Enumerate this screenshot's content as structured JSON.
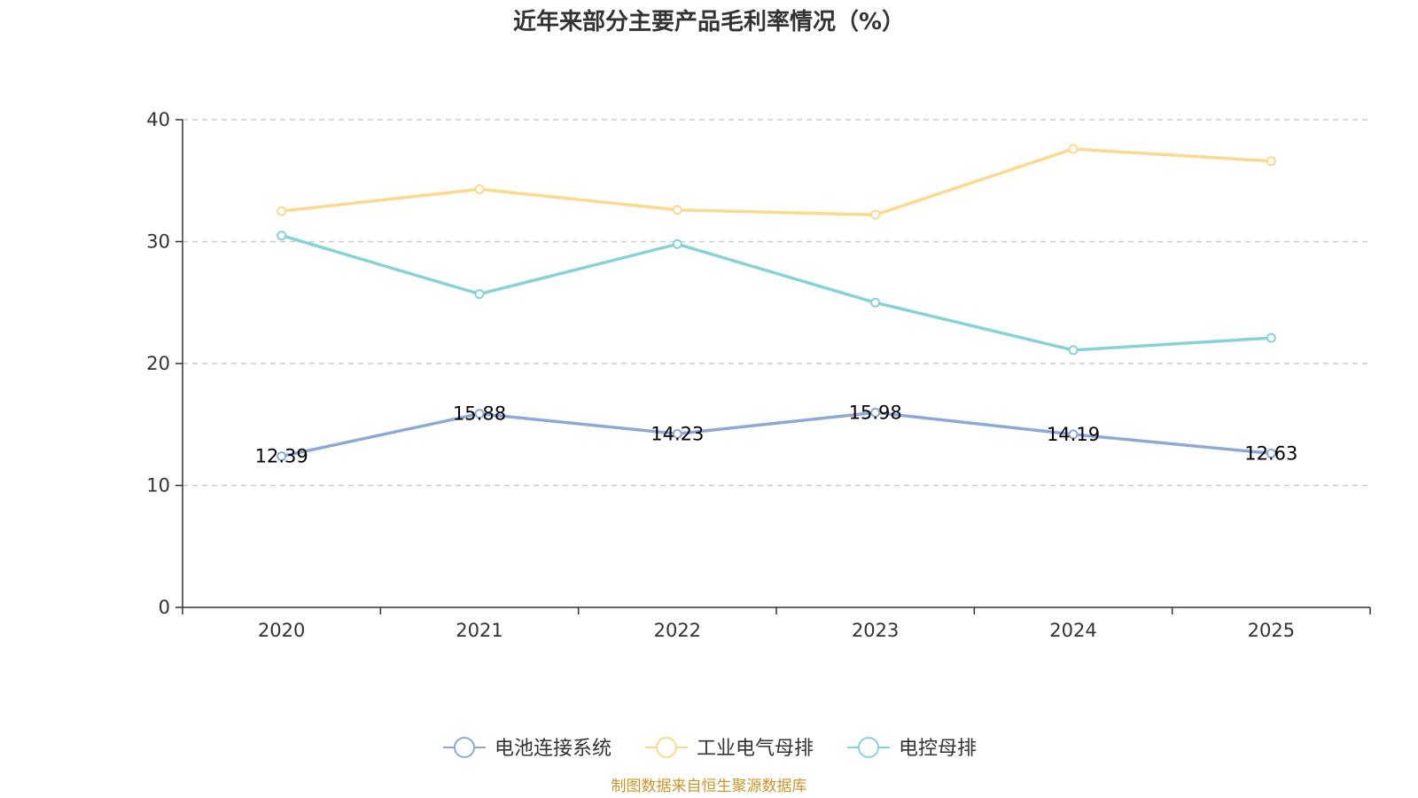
{
  "chart_data": {
    "type": "line",
    "title": "近年来部分主要产品毛利率情况（%）",
    "categories": [
      "2020",
      "2021",
      "2022",
      "2023",
      "2024",
      "2025"
    ],
    "ylim": [
      0,
      40
    ],
    "yticks": [
      0,
      10,
      20,
      30,
      40
    ],
    "grid": true,
    "legend_position": "bottom",
    "series": [
      {
        "name": "电池连接系统",
        "color": "#8ea9d6",
        "values": [
          12.39,
          15.88,
          14.23,
          15.98,
          14.19,
          12.63
        ],
        "labels": [
          "12.39",
          "15.88",
          "14.23",
          "15.98",
          "14.19",
          "12.63"
        ],
        "show_labels": true
      },
      {
        "name": "工业电气母排",
        "color": "#fbd98e",
        "values": [
          32.5,
          34.3,
          32.6,
          32.2,
          37.6,
          36.6
        ],
        "show_labels": false
      },
      {
        "name": "电控母排",
        "color": "#86d3d6",
        "values": [
          30.5,
          25.7,
          29.8,
          25.0,
          21.1,
          22.1
        ],
        "show_labels": false
      }
    ],
    "source": "制图数据来自恒生聚源数据库"
  }
}
